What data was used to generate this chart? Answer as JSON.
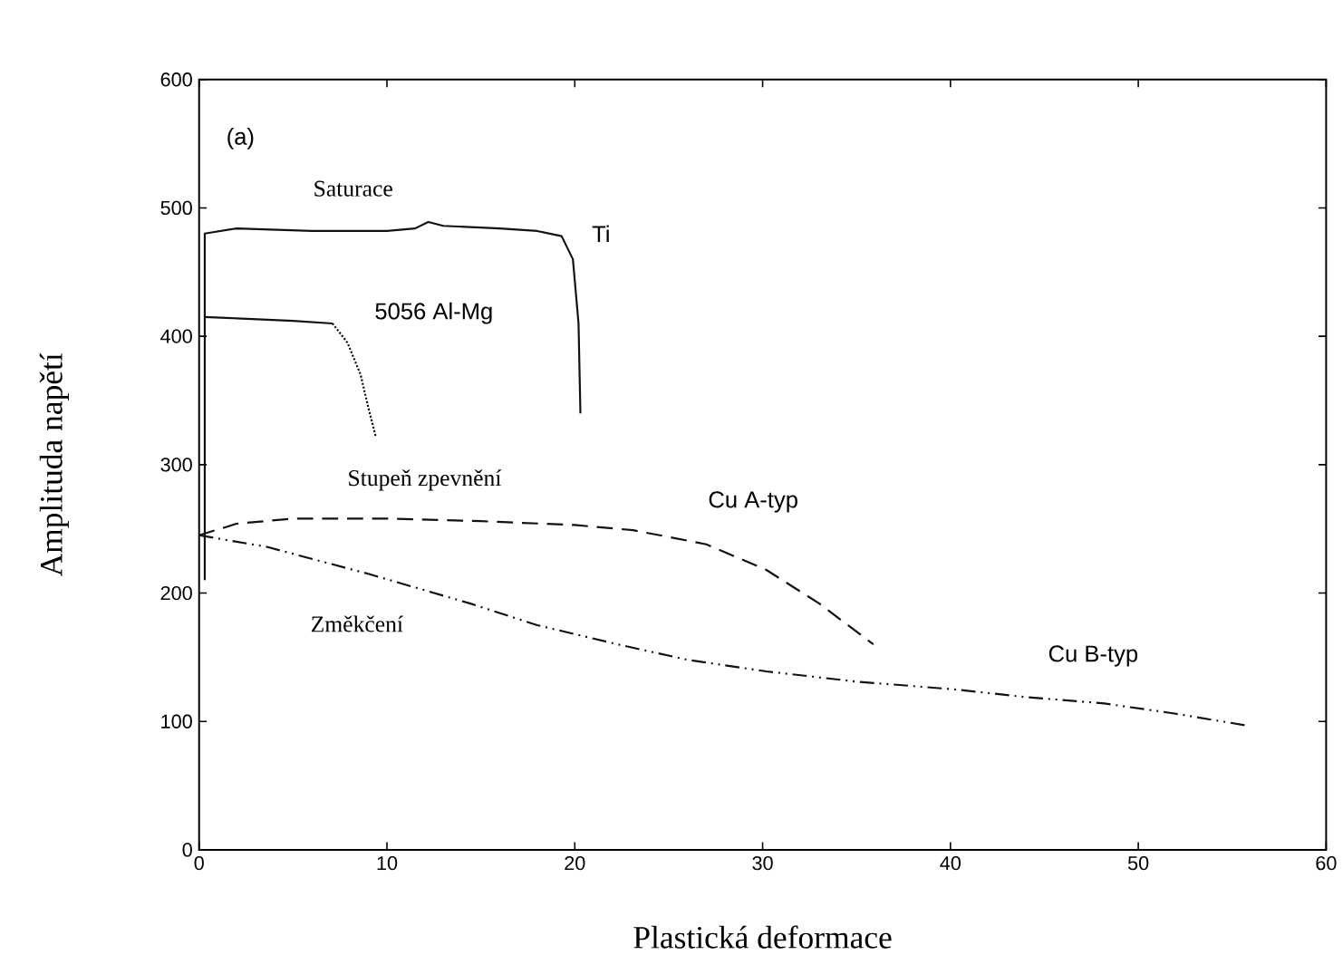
{
  "chart_data": {
    "type": "line",
    "xlabel": "Plastická deformace",
    "ylabel": "Amplituda napětí",
    "xlim": [
      0,
      60
    ],
    "ylim": [
      0,
      600
    ],
    "xticks": [
      0,
      10,
      20,
      30,
      40,
      50,
      60
    ],
    "yticks": [
      0,
      100,
      200,
      300,
      400,
      500,
      600
    ],
    "grid": false,
    "legend": false,
    "marker": "none",
    "series": [
      {
        "name": "Ti",
        "color": "#111111",
        "line_style": "solid",
        "x": [
          0.3,
          0.3,
          2,
          6,
          10,
          11.5,
          12.2,
          13,
          16,
          18,
          19.3,
          19.9,
          20.2,
          20.3
        ],
        "values": [
          210,
          480,
          484,
          482,
          482,
          484,
          489,
          486,
          484,
          482,
          478,
          460,
          410,
          340
        ]
      },
      {
        "name": "5056 Al-Mg",
        "color": "#111111",
        "line_style": "solid",
        "x": [
          0.3,
          2,
          5,
          7.1
        ],
        "values": [
          415,
          414,
          412,
          410
        ]
      },
      {
        "color": "#111111",
        "line_style": "dotted",
        "x": [
          7.1,
          7.9,
          8.6,
          9.0,
          9.4
        ],
        "values": [
          410,
          395,
          370,
          345,
          322
        ]
      },
      {
        "name": "Cu A-typ",
        "color": "#111111",
        "line_style": "dashed",
        "x": [
          0,
          2,
          5,
          10,
          15,
          20,
          23.1,
          27,
          30.2,
          33,
          35.9
        ],
        "values": [
          245,
          254,
          258,
          258,
          256,
          253,
          249,
          238,
          218,
          192,
          160
        ]
      },
      {
        "name": "Cu B-typ",
        "color": "#111111",
        "line_style": "dashdot",
        "x": [
          0,
          3.6,
          9,
          14.4,
          18,
          22.3,
          26,
          30.2,
          35,
          40.2,
          44,
          48.2,
          52,
          55.7
        ],
        "values": [
          245,
          236,
          215,
          192,
          175,
          160,
          148,
          139,
          131,
          125,
          119,
          114,
          106,
          97
        ]
      }
    ],
    "annotations": [
      "(a)",
      "Saturace",
      "Stupeň zpevnění",
      "Změkčení"
    ]
  }
}
